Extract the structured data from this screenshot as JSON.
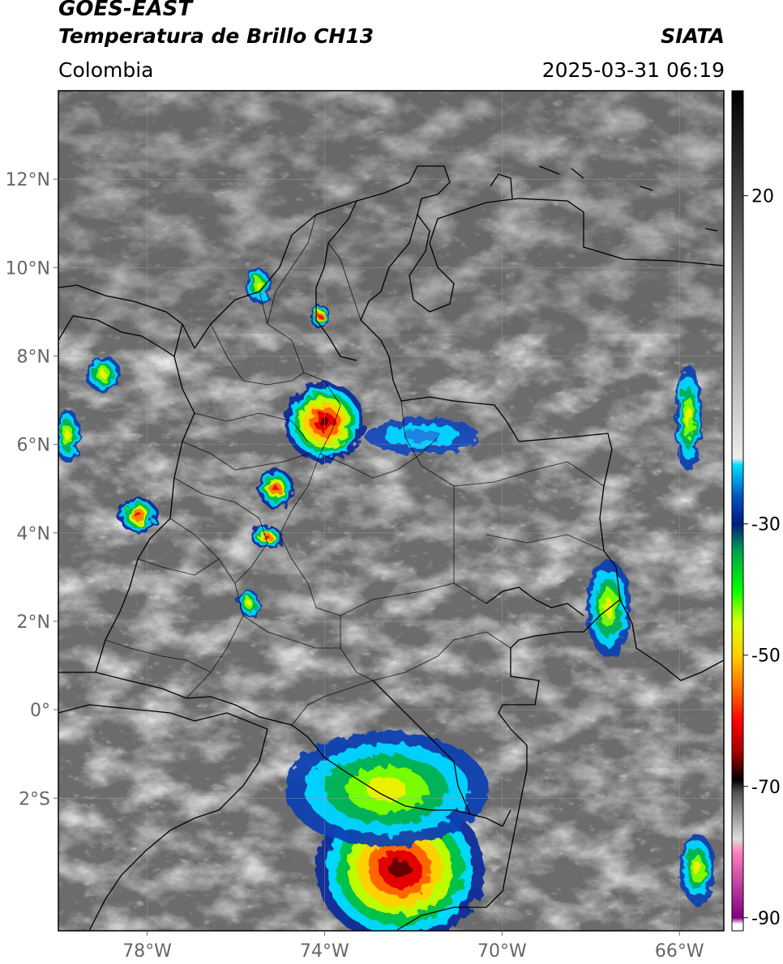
{
  "header": {
    "satellite": "GOES-EAST",
    "product": "Temperatura de Brillo CH13",
    "region": "Colombia",
    "source": "SIATA",
    "datetime": "2025-03-31 06:19"
  },
  "map": {
    "lon_range": [
      -80,
      -65
    ],
    "lat_range": [
      -5,
      14
    ],
    "lat_ticks": [
      {
        "value": 12,
        "label": "12°N"
      },
      {
        "value": 10,
        "label": "10°N"
      },
      {
        "value": 8,
        "label": "8°N"
      },
      {
        "value": 6,
        "label": "6°N"
      },
      {
        "value": 4,
        "label": "4°N"
      },
      {
        "value": 2,
        "label": "2°N"
      },
      {
        "value": 0,
        "label": "0°"
      },
      {
        "value": -2,
        "label": "2°S"
      }
    ],
    "lon_ticks": [
      {
        "value": -78,
        "label": "78°W"
      },
      {
        "value": -74,
        "label": "74°W"
      },
      {
        "value": -70,
        "label": "70°W"
      },
      {
        "value": -66,
        "label": "66°W"
      }
    ],
    "gridlines": true
  },
  "colorbar": {
    "range": [
      -92,
      36
    ],
    "ticks": [
      {
        "value": 20,
        "label": "20"
      },
      {
        "value": -30,
        "label": "-30"
      },
      {
        "value": -50,
        "label": "-50"
      },
      {
        "value": -70,
        "label": "-70"
      },
      {
        "value": -90,
        "label": "-90"
      }
    ],
    "stops": [
      {
        "value": 36,
        "color": "#000000"
      },
      {
        "value": -20,
        "color": "#ececec"
      },
      {
        "value": -21,
        "color": "#00e0ff"
      },
      {
        "value": -26,
        "color": "#0050c0"
      },
      {
        "value": -30,
        "color": "#001a80"
      },
      {
        "value": -34,
        "color": "#00a050"
      },
      {
        "value": -40,
        "color": "#00ff00"
      },
      {
        "value": -45,
        "color": "#d8ff00"
      },
      {
        "value": -50,
        "color": "#ffd000"
      },
      {
        "value": -55,
        "color": "#ff7000"
      },
      {
        "value": -60,
        "color": "#ff0000"
      },
      {
        "value": -65,
        "color": "#a00000"
      },
      {
        "value": -69,
        "color": "#000000"
      },
      {
        "value": -71,
        "color": "#555555"
      },
      {
        "value": -78,
        "color": "#dddddd"
      },
      {
        "value": -80,
        "color": "#ff80c0"
      },
      {
        "value": -90,
        "color": "#800080"
      },
      {
        "value": -91,
        "color": "#ffffff"
      }
    ]
  },
  "convective_cells": [
    {
      "lon": -72.3,
      "lat": -3.6,
      "rx": 1.9,
      "ry": 1.7,
      "peak": "core"
    },
    {
      "lon": -72.6,
      "lat": -1.8,
      "rx": 2.3,
      "ry": 1.3,
      "peak": "moderate"
    },
    {
      "lon": -74.0,
      "lat": 6.5,
      "rx": 0.9,
      "ry": 0.9,
      "peak": "core"
    },
    {
      "lon": -75.1,
      "lat": 5.0,
      "rx": 0.4,
      "ry": 0.45,
      "peak": "strong"
    },
    {
      "lon": -75.3,
      "lat": 3.9,
      "rx": 0.35,
      "ry": 0.25,
      "peak": "strong"
    },
    {
      "lon": -75.5,
      "lat": 9.6,
      "rx": 0.3,
      "ry": 0.4,
      "peak": "moderate"
    },
    {
      "lon": -74.1,
      "lat": 8.9,
      "rx": 0.25,
      "ry": 0.25,
      "peak": "strong"
    },
    {
      "lon": -78.2,
      "lat": 4.4,
      "rx": 0.45,
      "ry": 0.4,
      "peak": "strong"
    },
    {
      "lon": -79.0,
      "lat": 7.6,
      "rx": 0.4,
      "ry": 0.4,
      "peak": "moderate"
    },
    {
      "lon": -79.8,
      "lat": 6.2,
      "rx": 0.3,
      "ry": 0.6,
      "peak": "moderate"
    },
    {
      "lon": -67.6,
      "lat": 2.3,
      "rx": 0.5,
      "ry": 1.1,
      "peak": "moderate"
    },
    {
      "lon": -65.6,
      "lat": -3.6,
      "rx": 0.4,
      "ry": 0.8,
      "peak": "moderate"
    },
    {
      "lon": -71.8,
      "lat": 6.2,
      "rx": 1.3,
      "ry": 0.4,
      "peak": "weak"
    },
    {
      "lon": -65.8,
      "lat": 6.6,
      "rx": 0.3,
      "ry": 1.2,
      "peak": "moderate"
    },
    {
      "lon": -75.7,
      "lat": 2.4,
      "rx": 0.25,
      "ry": 0.3,
      "peak": "moderate"
    }
  ]
}
